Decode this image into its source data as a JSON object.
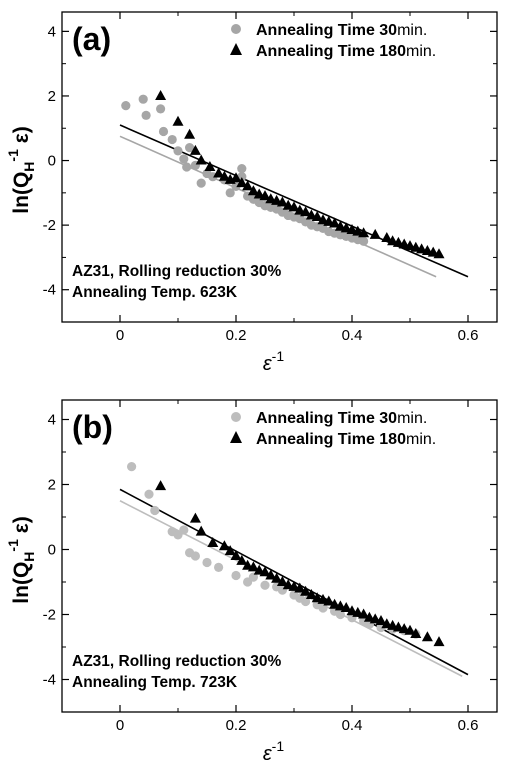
{
  "chart_data": [
    {
      "type": "scatter",
      "panel_label": "(a)",
      "xlabel": "ε",
      "xlabel_sup": "-1",
      "ylabel_main": "ln(Q",
      "ylabel_sub": "H",
      "ylabel_sup": "-1",
      "ylabel_end": "ε)",
      "xlim": [
        -0.1,
        0.65
      ],
      "ylim": [
        -5,
        4.6
      ],
      "xticks": [
        0,
        0.2,
        0.4,
        0.6
      ],
      "xtick_labels": [
        "0",
        "0.2",
        "0.4",
        "0.6"
      ],
      "yticks": [
        4,
        2,
        0,
        -2,
        -4
      ],
      "ytick_labels": [
        "4",
        "2",
        "0",
        "-2",
        "-4"
      ],
      "legend_position": "top-right",
      "legend": [
        {
          "name_bold": "Annealing Time 30",
          "name_rest": "min.",
          "marker": "circle",
          "color": "#a6a6a6"
        },
        {
          "name_bold": "Annealing Time 180",
          "name_rest": "min.",
          "marker": "triangle",
          "color": "#000000"
        }
      ],
      "annotation": [
        "AZ31, Rolling reduction 30%",
        "Annealing Temp. 623K"
      ],
      "series": [
        {
          "marker": "circle",
          "color": "#a6a6a6",
          "points": [
            [
              0.01,
              1.7
            ],
            [
              0.04,
              1.9
            ],
            [
              0.045,
              1.4
            ],
            [
              0.07,
              1.6
            ],
            [
              0.075,
              0.9
            ],
            [
              0.09,
              0.65
            ],
            [
              0.1,
              0.3
            ],
            [
              0.11,
              0.05
            ],
            [
              0.115,
              -0.2
            ],
            [
              0.13,
              -0.15
            ],
            [
              0.14,
              -0.7
            ],
            [
              0.15,
              -0.4
            ],
            [
              0.16,
              -0.5
            ],
            [
              0.18,
              -0.6
            ],
            [
              0.19,
              -1.0
            ],
            [
              0.2,
              -0.8
            ],
            [
              0.21,
              -0.5
            ],
            [
              0.22,
              -1.1
            ],
            [
              0.23,
              -1.2
            ],
            [
              0.24,
              -1.3
            ],
            [
              0.25,
              -1.4
            ],
            [
              0.26,
              -1.45
            ],
            [
              0.27,
              -1.5
            ],
            [
              0.28,
              -1.6
            ],
            [
              0.29,
              -1.7
            ],
            [
              0.3,
              -1.75
            ],
            [
              0.31,
              -1.8
            ],
            [
              0.32,
              -1.9
            ],
            [
              0.33,
              -2.0
            ],
            [
              0.34,
              -2.05
            ],
            [
              0.35,
              -2.1
            ],
            [
              0.36,
              -2.2
            ],
            [
              0.37,
              -2.25
            ],
            [
              0.38,
              -2.3
            ],
            [
              0.39,
              -2.35
            ],
            [
              0.4,
              -2.4
            ],
            [
              0.41,
              -2.45
            ],
            [
              0.42,
              -2.5
            ],
            [
              0.21,
              -0.25
            ],
            [
              0.12,
              0.4
            ]
          ]
        },
        {
          "marker": "triangle",
          "color": "#000000",
          "points": [
            [
              0.07,
              2.0
            ],
            [
              0.1,
              1.2
            ],
            [
              0.12,
              0.8
            ],
            [
              0.13,
              0.3
            ],
            [
              0.14,
              0.0
            ],
            [
              0.155,
              -0.2
            ],
            [
              0.17,
              -0.4
            ],
            [
              0.18,
              -0.5
            ],
            [
              0.19,
              -0.6
            ],
            [
              0.2,
              -0.55
            ],
            [
              0.21,
              -0.7
            ],
            [
              0.22,
              -0.8
            ],
            [
              0.23,
              -0.95
            ],
            [
              0.24,
              -1.05
            ],
            [
              0.25,
              -1.1
            ],
            [
              0.26,
              -1.2
            ],
            [
              0.27,
              -1.25
            ],
            [
              0.28,
              -1.3
            ],
            [
              0.29,
              -1.4
            ],
            [
              0.3,
              -1.45
            ],
            [
              0.31,
              -1.55
            ],
            [
              0.32,
              -1.6
            ],
            [
              0.33,
              -1.7
            ],
            [
              0.34,
              -1.75
            ],
            [
              0.35,
              -1.85
            ],
            [
              0.36,
              -1.9
            ],
            [
              0.37,
              -1.95
            ],
            [
              0.38,
              -2.05
            ],
            [
              0.39,
              -2.1
            ],
            [
              0.4,
              -2.15
            ],
            [
              0.41,
              -2.2
            ],
            [
              0.42,
              -2.25
            ],
            [
              0.44,
              -2.3
            ],
            [
              0.46,
              -2.4
            ],
            [
              0.47,
              -2.5
            ],
            [
              0.48,
              -2.55
            ],
            [
              0.49,
              -2.6
            ],
            [
              0.5,
              -2.65
            ],
            [
              0.51,
              -2.7
            ],
            [
              0.52,
              -2.75
            ],
            [
              0.53,
              -2.8
            ],
            [
              0.54,
              -2.85
            ],
            [
              0.55,
              -2.9
            ]
          ]
        }
      ],
      "fit_lines": [
        {
          "color": "#a6a6a6",
          "x": [
            0,
            0.545
          ],
          "y": [
            0.75,
            -3.6
          ]
        },
        {
          "color": "#000000",
          "x": [
            0,
            0.6
          ],
          "y": [
            1.1,
            -3.6
          ]
        }
      ]
    },
    {
      "type": "scatter",
      "panel_label": "(b)",
      "xlabel": "ε",
      "xlabel_sup": "-1",
      "ylabel_main": "ln(Q",
      "ylabel_sub": "H",
      "ylabel_sup": "-1",
      "ylabel_end": "ε)",
      "xlim": [
        -0.1,
        0.65
      ],
      "ylim": [
        -5,
        4.6
      ],
      "xticks": [
        0,
        0.2,
        0.4,
        0.6
      ],
      "xtick_labels": [
        "0",
        "0.2",
        "0.4",
        "0.6"
      ],
      "yticks": [
        4,
        2,
        0,
        -2,
        -4
      ],
      "ytick_labels": [
        "4",
        "2",
        "0",
        "-2",
        "-4"
      ],
      "legend_position": "top-right",
      "legend": [
        {
          "name_bold": "Annealing Time 30",
          "name_rest": "min.",
          "marker": "circle",
          "color": "#bdbdbd"
        },
        {
          "name_bold": "Annealing Time 180",
          "name_rest": "min.",
          "marker": "triangle",
          "color": "#000000"
        }
      ],
      "annotation": [
        "AZ31, Rolling reduction 30%",
        "Annealing Temp. 723K"
      ],
      "series": [
        {
          "marker": "circle",
          "color": "#bdbdbd",
          "points": [
            [
              0.02,
              2.55
            ],
            [
              0.05,
              1.7
            ],
            [
              0.06,
              1.2
            ],
            [
              0.09,
              0.55
            ],
            [
              0.1,
              0.45
            ],
            [
              0.11,
              0.6
            ],
            [
              0.12,
              -0.1
            ],
            [
              0.13,
              -0.2
            ],
            [
              0.15,
              -0.4
            ],
            [
              0.17,
              -0.55
            ],
            [
              0.2,
              -0.8
            ],
            [
              0.22,
              -1.0
            ],
            [
              0.23,
              -0.85
            ],
            [
              0.25,
              -1.1
            ],
            [
              0.27,
              -1.15
            ],
            [
              0.28,
              -1.25
            ],
            [
              0.3,
              -1.4
            ],
            [
              0.31,
              -1.5
            ],
            [
              0.32,
              -1.6
            ],
            [
              0.34,
              -1.7
            ],
            [
              0.35,
              -1.8
            ],
            [
              0.37,
              -1.9
            ],
            [
              0.38,
              -2.0
            ],
            [
              0.4,
              -2.1
            ],
            [
              0.42,
              -2.2
            ],
            [
              0.43,
              -2.3
            ],
            [
              0.45,
              -2.4
            ],
            [
              0.47,
              -2.45
            ],
            [
              0.49,
              -2.5
            ],
            [
              0.51,
              -2.6
            ]
          ]
        },
        {
          "marker": "triangle",
          "color": "#000000",
          "points": [
            [
              0.07,
              1.95
            ],
            [
              0.13,
              0.95
            ],
            [
              0.14,
              0.55
            ],
            [
              0.16,
              0.2
            ],
            [
              0.18,
              0.1
            ],
            [
              0.19,
              -0.05
            ],
            [
              0.2,
              -0.2
            ],
            [
              0.21,
              -0.35
            ],
            [
              0.22,
              -0.5
            ],
            [
              0.23,
              -0.55
            ],
            [
              0.24,
              -0.65
            ],
            [
              0.25,
              -0.7
            ],
            [
              0.26,
              -0.8
            ],
            [
              0.27,
              -0.9
            ],
            [
              0.28,
              -1.0
            ],
            [
              0.29,
              -1.1
            ],
            [
              0.3,
              -1.15
            ],
            [
              0.31,
              -1.2
            ],
            [
              0.32,
              -1.3
            ],
            [
              0.33,
              -1.4
            ],
            [
              0.34,
              -1.5
            ],
            [
              0.35,
              -1.55
            ],
            [
              0.36,
              -1.6
            ],
            [
              0.37,
              -1.7
            ],
            [
              0.38,
              -1.75
            ],
            [
              0.39,
              -1.8
            ],
            [
              0.4,
              -1.9
            ],
            [
              0.41,
              -1.95
            ],
            [
              0.42,
              -2.0
            ],
            [
              0.43,
              -2.1
            ],
            [
              0.44,
              -2.15
            ],
            [
              0.45,
              -2.2
            ],
            [
              0.46,
              -2.3
            ],
            [
              0.47,
              -2.35
            ],
            [
              0.48,
              -2.4
            ],
            [
              0.49,
              -2.45
            ],
            [
              0.5,
              -2.5
            ],
            [
              0.51,
              -2.6
            ],
            [
              0.53,
              -2.7
            ],
            [
              0.55,
              -2.85
            ]
          ]
        }
      ],
      "fit_lines": [
        {
          "color": "#bdbdbd",
          "x": [
            0,
            0.59
          ],
          "y": [
            1.5,
            -3.9
          ]
        },
        {
          "color": "#000000",
          "x": [
            0,
            0.6
          ],
          "y": [
            1.85,
            -3.85
          ]
        }
      ]
    }
  ]
}
